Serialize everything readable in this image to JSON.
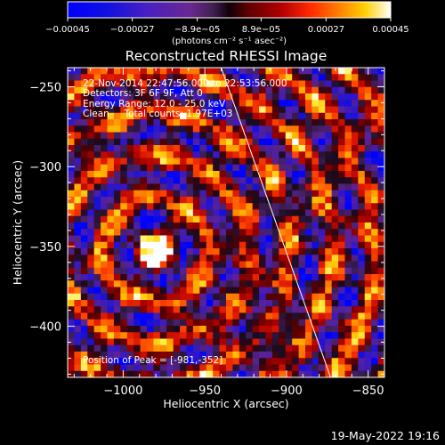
{
  "chart_data": {
    "type": "heatmap",
    "title": "Reconstructed RHESSI Image",
    "xlabel": "Heliocentric X (arcsec)",
    "ylabel": "Heliocentric Y (arcsec)",
    "xlim": [
      -1034,
      -840
    ],
    "ylim": [
      -432,
      -238
    ],
    "x_ticks": [
      -1000,
      -950,
      -900,
      -850
    ],
    "x_tick_labels": [
      "−1000",
      "−950",
      "−900",
      "−850"
    ],
    "y_ticks": [
      -250,
      -300,
      -350,
      -400
    ],
    "y_tick_labels": [
      "−250",
      "−300",
      "−350",
      "−400"
    ],
    "colorbar": {
      "range": [
        -0.00045,
        0.00045
      ],
      "ticks": [
        -0.00045,
        -0.00027,
        -8.9e-05,
        8.9e-05,
        0.00027,
        0.00045
      ],
      "tick_labels": [
        "−0.00045",
        "−0.00027",
        "−8.9e−05",
        "8.9e−05",
        "0.00027",
        "0.00045"
      ],
      "unit_label": "(photons cm⁻² s⁻¹ asec⁻²)"
    },
    "annotations": {
      "time_range": "22-Nov-2014 22:47:56.000 to 22:53:56.000",
      "detectors": "Detectors: 3F 6F 9F, Att 0",
      "energy_range": "Energy Range: 12.0 - 25.0 keV",
      "clean": "Clean     Total counts: 1.97E+03",
      "peak": "Position of Peak = [-981,-352]"
    },
    "peak_position": [
      -981,
      -352
    ],
    "limb_line": [
      [
        -940,
        -238
      ],
      [
        -873,
        -432
      ]
    ]
  },
  "footer": {
    "date_stamp": "19-May-2022 19:16"
  }
}
